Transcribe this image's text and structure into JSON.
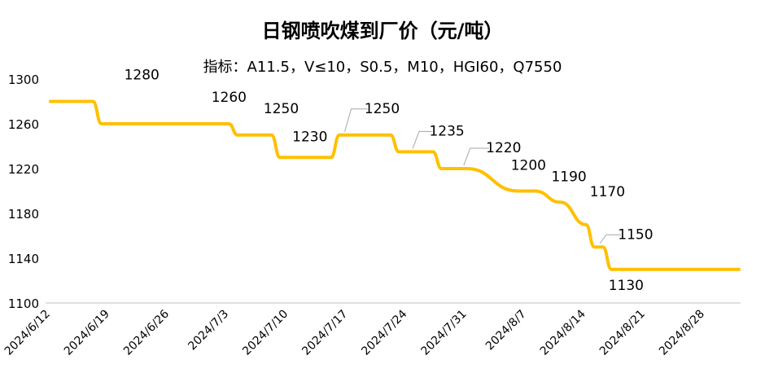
{
  "chart_data": {
    "type": "line",
    "title": "日钢喷吹煤到厂价（元/吨）",
    "subtitle": "指标：A11.5，V≤10，S0.5，M10，HGI60，Q7550",
    "xlabel": "",
    "ylabel": "",
    "ylim": [
      1100,
      1300
    ],
    "y_ticks": [
      1100,
      1140,
      1180,
      1220,
      1260,
      1300
    ],
    "x_ticks": [
      "2024/6/12",
      "2024/6/19",
      "2024/6/26",
      "2024/7/3",
      "2024/7/10",
      "2024/7/17",
      "2024/7/24",
      "2024/7/31",
      "2024/8/7",
      "2024/8/14",
      "2024/8/21",
      "2024/8/28"
    ],
    "grid": false,
    "legend": "none",
    "line_color": "#FFC000",
    "series": [
      {
        "x": [
          "2024/6/12",
          "2024/6/17",
          "2024/6/18",
          "2024/7/3",
          "2024/7/4",
          "2024/7/8",
          "2024/7/9",
          "2024/7/15",
          "2024/7/16",
          "2024/7/22",
          "2024/7/23",
          "2024/7/27",
          "2024/7/28",
          "2024/7/30",
          "2024/7/31",
          "2024/8/6",
          "2024/8/8",
          "2024/8/11",
          "2024/8/14",
          "2024/8/15",
          "2024/8/16",
          "2024/8/17",
          "2024/9/1"
        ],
        "values": [
          1280,
          1280,
          1260,
          1260,
          1250,
          1250,
          1230,
          1230,
          1250,
          1250,
          1235,
          1235,
          1220,
          1220,
          1220,
          1200,
          1200,
          1190,
          1170,
          1150,
          1150,
          1130,
          1130
        ]
      }
    ],
    "data_labels": [
      {
        "text": "1280",
        "x": "2024/6/17",
        "y": 1280
      },
      {
        "text": "1260",
        "x": "2024/7/3",
        "y": 1260
      },
      {
        "text": "1250",
        "x": "2024/7/8",
        "y": 1250
      },
      {
        "text": "1230",
        "x": "2024/7/13",
        "y": 1230
      },
      {
        "text": "1250",
        "x": "2024/7/17",
        "y": 1250
      },
      {
        "text": "1235",
        "x": "2024/7/25",
        "y": 1235
      },
      {
        "text": "1220",
        "x": "2024/7/31",
        "y": 1220
      },
      {
        "text": "1200",
        "x": "2024/8/8",
        "y": 1200
      },
      {
        "text": "1190",
        "x": "2024/8/12",
        "y": 1190
      },
      {
        "text": "1170",
        "x": "2024/8/15",
        "y": 1170
      },
      {
        "text": "1150",
        "x": "2024/8/16",
        "y": 1150
      },
      {
        "text": "1130",
        "x": "2024/8/17",
        "y": 1130
      }
    ]
  }
}
